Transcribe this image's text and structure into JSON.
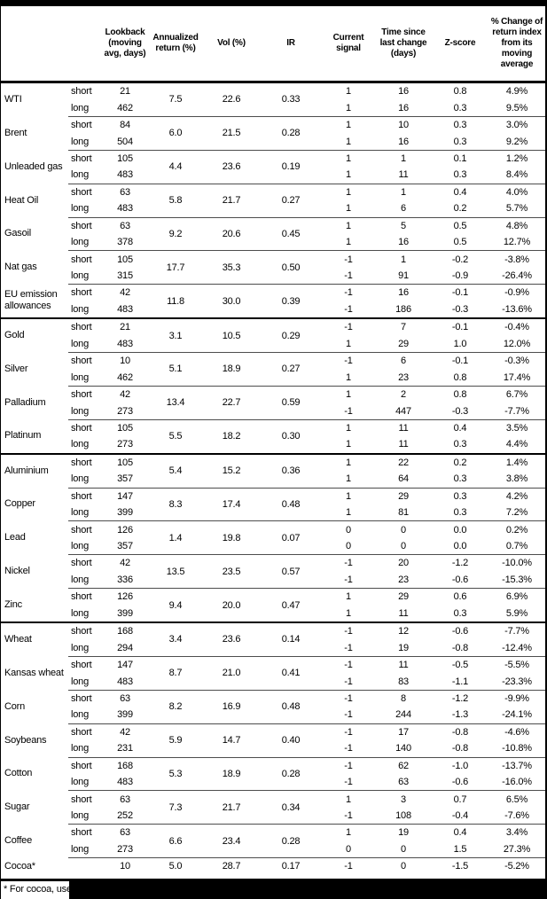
{
  "colors": {
    "frame": "#000000",
    "thin_rule": "#4d4d4d",
    "background": "#ffffff",
    "text": "#000000"
  },
  "footnote": {
    "text": "* For cocoa, uses c"
  },
  "table": {
    "headers": {
      "commodity": "",
      "horizon": "",
      "lookback": "Lookback (moving avg, days)",
      "annualized_return": "Annualized return (%)",
      "vol": "Vol (%)",
      "ir": "IR",
      "current_signal": "Current signal",
      "time_since_change": "Time since last change (days)",
      "z_score": "Z-score",
      "pct_change": "% Change of return index from its moving average"
    },
    "sections": [
      {
        "groups": [
          {
            "name": "WTI",
            "annualized_return": "7.5",
            "vol": "22.6",
            "ir": "0.33",
            "rows": [
              {
                "label": "short",
                "lookback": "21",
                "signal": "1",
                "time_since_change": "16",
                "z_score": "0.8",
                "pct_change": "4.9%"
              },
              {
                "label": "long",
                "lookback": "462",
                "signal": "1",
                "time_since_change": "16",
                "z_score": "0.3",
                "pct_change": "9.5%"
              }
            ]
          },
          {
            "name": "Brent",
            "annualized_return": "6.0",
            "vol": "21.5",
            "ir": "0.28",
            "rows": [
              {
                "label": "short",
                "lookback": "84",
                "signal": "1",
                "time_since_change": "10",
                "z_score": "0.3",
                "pct_change": "3.0%"
              },
              {
                "label": "long",
                "lookback": "504",
                "signal": "1",
                "time_since_change": "16",
                "z_score": "0.3",
                "pct_change": "9.2%"
              }
            ]
          },
          {
            "name": "Unleaded gas",
            "annualized_return": "4.4",
            "vol": "23.6",
            "ir": "0.19",
            "rows": [
              {
                "label": "short",
                "lookback": "105",
                "signal": "1",
                "time_since_change": "1",
                "z_score": "0.1",
                "pct_change": "1.2%"
              },
              {
                "label": "long",
                "lookback": "483",
                "signal": "1",
                "time_since_change": "11",
                "z_score": "0.3",
                "pct_change": "8.4%"
              }
            ]
          },
          {
            "name": "Heat Oil",
            "annualized_return": "5.8",
            "vol": "21.7",
            "ir": "0.27",
            "rows": [
              {
                "label": "short",
                "lookback": "63",
                "signal": "1",
                "time_since_change": "1",
                "z_score": "0.4",
                "pct_change": "4.0%"
              },
              {
                "label": "long",
                "lookback": "483",
                "signal": "1",
                "time_since_change": "6",
                "z_score": "0.2",
                "pct_change": "5.7%"
              }
            ]
          },
          {
            "name": "Gasoil",
            "annualized_return": "9.2",
            "vol": "20.6",
            "ir": "0.45",
            "rows": [
              {
                "label": "short",
                "lookback": "63",
                "signal": "1",
                "time_since_change": "5",
                "z_score": "0.5",
                "pct_change": "4.8%"
              },
              {
                "label": "long",
                "lookback": "378",
                "signal": "1",
                "time_since_change": "16",
                "z_score": "0.5",
                "pct_change": "12.7%"
              }
            ]
          },
          {
            "name": "Nat gas",
            "annualized_return": "17.7",
            "vol": "35.3",
            "ir": "0.50",
            "rows": [
              {
                "label": "short",
                "lookback": "105",
                "signal": "-1",
                "time_since_change": "1",
                "z_score": "-0.2",
                "pct_change": "-3.8%"
              },
              {
                "label": "long",
                "lookback": "315",
                "signal": "-1",
                "time_since_change": "91",
                "z_score": "-0.9",
                "pct_change": "-26.4%"
              }
            ]
          },
          {
            "name": "EU emission allowances",
            "annualized_return": "11.8",
            "vol": "30.0",
            "ir": "0.39",
            "rows": [
              {
                "label": "short",
                "lookback": "42",
                "signal": "-1",
                "time_since_change": "16",
                "z_score": "-0.1",
                "pct_change": "-0.9%"
              },
              {
                "label": "long",
                "lookback": "483",
                "signal": "-1",
                "time_since_change": "186",
                "z_score": "-0.3",
                "pct_change": "-13.6%"
              }
            ]
          }
        ]
      },
      {
        "groups": [
          {
            "name": "Gold",
            "annualized_return": "3.1",
            "vol": "10.5",
            "ir": "0.29",
            "rows": [
              {
                "label": "short",
                "lookback": "21",
                "signal": "-1",
                "time_since_change": "7",
                "z_score": "-0.1",
                "pct_change": "-0.4%"
              },
              {
                "label": "long",
                "lookback": "483",
                "signal": "1",
                "time_since_change": "29",
                "z_score": "1.0",
                "pct_change": "12.0%"
              }
            ]
          },
          {
            "name": "Silver",
            "annualized_return": "5.1",
            "vol": "18.9",
            "ir": "0.27",
            "rows": [
              {
                "label": "short",
                "lookback": "10",
                "signal": "-1",
                "time_since_change": "6",
                "z_score": "-0.1",
                "pct_change": "-0.3%"
              },
              {
                "label": "long",
                "lookback": "462",
                "signal": "1",
                "time_since_change": "23",
                "z_score": "0.8",
                "pct_change": "17.4%"
              }
            ]
          },
          {
            "name": "Palladium",
            "annualized_return": "13.4",
            "vol": "22.7",
            "ir": "0.59",
            "rows": [
              {
                "label": "short",
                "lookback": "42",
                "signal": "1",
                "time_since_change": "2",
                "z_score": "0.8",
                "pct_change": "6.7%"
              },
              {
                "label": "long",
                "lookback": "273",
                "signal": "-1",
                "time_since_change": "447",
                "z_score": "-0.3",
                "pct_change": "-7.7%"
              }
            ]
          },
          {
            "name": "Platinum",
            "annualized_return": "5.5",
            "vol": "18.2",
            "ir": "0.30",
            "rows": [
              {
                "label": "short",
                "lookback": "105",
                "signal": "1",
                "time_since_change": "11",
                "z_score": "0.4",
                "pct_change": "3.5%"
              },
              {
                "label": "long",
                "lookback": "273",
                "signal": "1",
                "time_since_change": "11",
                "z_score": "0.3",
                "pct_change": "4.4%"
              }
            ]
          }
        ]
      },
      {
        "groups": [
          {
            "name": "Aluminium",
            "annualized_return": "5.4",
            "vol": "15.2",
            "ir": "0.36",
            "rows": [
              {
                "label": "short",
                "lookback": "105",
                "signal": "1",
                "time_since_change": "22",
                "z_score": "0.2",
                "pct_change": "1.4%"
              },
              {
                "label": "long",
                "lookback": "357",
                "signal": "1",
                "time_since_change": "64",
                "z_score": "0.3",
                "pct_change": "3.8%"
              }
            ]
          },
          {
            "name": "Copper",
            "annualized_return": "8.3",
            "vol": "17.4",
            "ir": "0.48",
            "rows": [
              {
                "label": "short",
                "lookback": "147",
                "signal": "1",
                "time_since_change": "29",
                "z_score": "0.3",
                "pct_change": "4.2%"
              },
              {
                "label": "long",
                "lookback": "399",
                "signal": "1",
                "time_since_change": "81",
                "z_score": "0.3",
                "pct_change": "7.2%"
              }
            ]
          },
          {
            "name": "Lead",
            "annualized_return": "1.4",
            "vol": "19.8",
            "ir": "0.07",
            "rows": [
              {
                "label": "short",
                "lookback": "126",
                "signal": "0",
                "time_since_change": "0",
                "z_score": "0.0",
                "pct_change": "0.2%"
              },
              {
                "label": "long",
                "lookback": "357",
                "signal": "0",
                "time_since_change": "0",
                "z_score": "0.0",
                "pct_change": "0.7%"
              }
            ]
          },
          {
            "name": "Nickel",
            "annualized_return": "13.5",
            "vol": "23.5",
            "ir": "0.57",
            "rows": [
              {
                "label": "short",
                "lookback": "42",
                "signal": "-1",
                "time_since_change": "20",
                "z_score": "-1.2",
                "pct_change": "-10.0%"
              },
              {
                "label": "long",
                "lookback": "336",
                "signal": "-1",
                "time_since_change": "23",
                "z_score": "-0.6",
                "pct_change": "-15.3%"
              }
            ]
          },
          {
            "name": "Zinc",
            "annualized_return": "9.4",
            "vol": "20.0",
            "ir": "0.47",
            "rows": [
              {
                "label": "short",
                "lookback": "126",
                "signal": "1",
                "time_since_change": "29",
                "z_score": "0.6",
                "pct_change": "6.9%"
              },
              {
                "label": "long",
                "lookback": "399",
                "signal": "1",
                "time_since_change": "11",
                "z_score": "0.3",
                "pct_change": "5.9%"
              }
            ]
          }
        ]
      },
      {
        "groups": [
          {
            "name": "Wheat",
            "annualized_return": "3.4",
            "vol": "23.6",
            "ir": "0.14",
            "rows": [
              {
                "label": "short",
                "lookback": "168",
                "signal": "-1",
                "time_since_change": "12",
                "z_score": "-0.6",
                "pct_change": "-7.7%"
              },
              {
                "label": "long",
                "lookback": "294",
                "signal": "-1",
                "time_since_change": "19",
                "z_score": "-0.8",
                "pct_change": "-12.4%"
              }
            ]
          },
          {
            "name": "Kansas wheat",
            "annualized_return": "8.7",
            "vol": "21.0",
            "ir": "0.41",
            "rows": [
              {
                "label": "short",
                "lookback": "147",
                "signal": "-1",
                "time_since_change": "11",
                "z_score": "-0.5",
                "pct_change": "-5.5%"
              },
              {
                "label": "long",
                "lookback": "483",
                "signal": "-1",
                "time_since_change": "83",
                "z_score": "-1.1",
                "pct_change": "-23.3%"
              }
            ]
          },
          {
            "name": "Corn",
            "annualized_return": "8.2",
            "vol": "16.9",
            "ir": "0.48",
            "rows": [
              {
                "label": "short",
                "lookback": "63",
                "signal": "-1",
                "time_since_change": "8",
                "z_score": "-1.2",
                "pct_change": "-9.9%"
              },
              {
                "label": "long",
                "lookback": "399",
                "signal": "-1",
                "time_since_change": "244",
                "z_score": "-1.3",
                "pct_change": "-24.1%"
              }
            ]
          },
          {
            "name": "Soybeans",
            "annualized_return": "5.9",
            "vol": "14.7",
            "ir": "0.40",
            "rows": [
              {
                "label": "short",
                "lookback": "42",
                "signal": "-1",
                "time_since_change": "17",
                "z_score": "-0.8",
                "pct_change": "-4.6%"
              },
              {
                "label": "long",
                "lookback": "231",
                "signal": "-1",
                "time_since_change": "140",
                "z_score": "-0.8",
                "pct_change": "-10.8%"
              }
            ]
          },
          {
            "name": "Cotton",
            "annualized_return": "5.3",
            "vol": "18.9",
            "ir": "0.28",
            "rows": [
              {
                "label": "short",
                "lookback": "168",
                "signal": "-1",
                "time_since_change": "62",
                "z_score": "-1.0",
                "pct_change": "-13.7%"
              },
              {
                "label": "long",
                "lookback": "483",
                "signal": "-1",
                "time_since_change": "63",
                "z_score": "-0.6",
                "pct_change": "-16.0%"
              }
            ]
          },
          {
            "name": "Sugar",
            "annualized_return": "7.3",
            "vol": "21.7",
            "ir": "0.34",
            "rows": [
              {
                "label": "short",
                "lookback": "63",
                "signal": "1",
                "time_since_change": "3",
                "z_score": "0.7",
                "pct_change": "6.5%"
              },
              {
                "label": "long",
                "lookback": "252",
                "signal": "-1",
                "time_since_change": "108",
                "z_score": "-0.4",
                "pct_change": "-7.6%"
              }
            ]
          },
          {
            "name": "Coffee",
            "annualized_return": "6.6",
            "vol": "23.4",
            "ir": "0.28",
            "rows": [
              {
                "label": "short",
                "lookback": "63",
                "signal": "1",
                "time_since_change": "19",
                "z_score": "0.4",
                "pct_change": "3.4%"
              },
              {
                "label": "long",
                "lookback": "273",
                "signal": "0",
                "time_since_change": "0",
                "z_score": "1.5",
                "pct_change": "27.3%"
              }
            ]
          },
          {
            "name": "Cocoa*",
            "annualized_return": "5.0",
            "vol": "28.7",
            "ir": "0.17",
            "rows": [
              {
                "label": "",
                "lookback": "10",
                "signal": "-1",
                "time_since_change": "0",
                "z_score": "-1.5",
                "pct_change": "-5.2%"
              }
            ]
          }
        ]
      }
    ]
  }
}
